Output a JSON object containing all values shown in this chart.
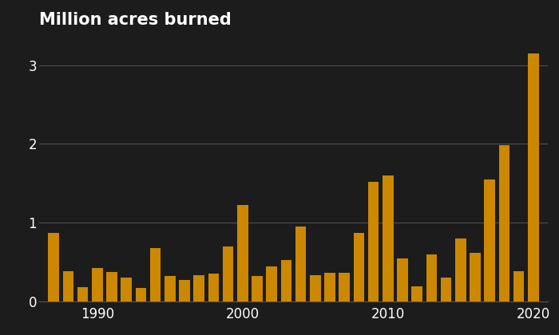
{
  "years": [
    1987,
    1988,
    1989,
    1990,
    1991,
    1992,
    1993,
    1994,
    1995,
    1996,
    1997,
    1998,
    1999,
    2000,
    2001,
    2002,
    2003,
    2004,
    2005,
    2006,
    2007,
    2008,
    2009,
    2010,
    2011,
    2012,
    2013,
    2014,
    2015,
    2016,
    2017,
    2018,
    2019,
    2020
  ],
  "values": [
    0.87,
    0.38,
    0.18,
    0.42,
    0.37,
    0.3,
    0.17,
    0.68,
    0.32,
    0.27,
    0.33,
    0.35,
    0.7,
    1.22,
    0.32,
    0.45,
    0.53,
    0.95,
    0.33,
    0.36,
    0.36,
    0.87,
    1.52,
    1.6,
    0.55,
    0.19,
    0.6,
    0.3,
    0.8,
    0.62,
    1.55,
    1.98,
    0.38,
    3.15
  ],
  "bar_color": "#cc8800",
  "background_color": "#1c1c1c",
  "text_color": "#ffffff",
  "title": "Million acres burned",
  "yticks": [
    0,
    1,
    2,
    3
  ],
  "xtick_years": [
    1990,
    2000,
    2010,
    2020
  ],
  "ylim": [
    0,
    3.4
  ],
  "xlim": [
    1986.0,
    2021.0
  ],
  "grid_color": "#555555",
  "title_fontsize": 15,
  "tick_fontsize": 12,
  "bar_width": 0.75
}
